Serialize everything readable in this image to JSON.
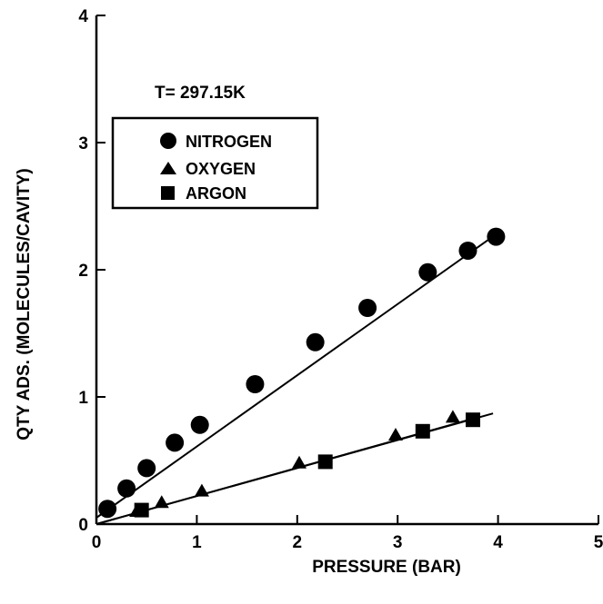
{
  "chart_data": {
    "type": "scatter",
    "title": "T= 297.15K",
    "xlabel": "PRESSURE (BAR)",
    "ylabel": "QTY ADS. (MOLECULES/CAVITY)",
    "xlim": [
      0,
      5
    ],
    "ylim": [
      0,
      4
    ],
    "xticks": [
      "0",
      "1",
      "2",
      "3",
      "4",
      "5"
    ],
    "yticks": [
      "0",
      "1",
      "2",
      "3",
      "4"
    ],
    "grid": false,
    "legend_position": "top-left",
    "series": [
      {
        "name": "NITROGEN",
        "marker": "circle",
        "x": [
          0.11,
          0.3,
          0.5,
          0.78,
          1.03,
          1.58,
          2.18,
          2.7,
          3.3,
          3.7,
          3.98
        ],
        "y": [
          0.12,
          0.28,
          0.44,
          0.64,
          0.78,
          1.1,
          1.43,
          1.7,
          1.98,
          2.15,
          2.26
        ],
        "fit": {
          "x": [
            0.0,
            4.0
          ],
          "y": [
            0.05,
            2.29
          ]
        }
      },
      {
        "name": "OXYGEN",
        "marker": "triangle",
        "x": [
          0.4,
          0.65,
          1.05,
          2.02,
          2.98,
          3.55
        ],
        "y": [
          0.1,
          0.17,
          0.26,
          0.48,
          0.7,
          0.84
        ],
        "fit": {
          "x": [
            0.0,
            3.95
          ],
          "y": [
            0.0,
            0.87
          ]
        }
      },
      {
        "name": "ARGON",
        "marker": "square",
        "x": [
          0.45,
          2.28,
          3.25,
          3.75
        ],
        "y": [
          0.11,
          0.49,
          0.73,
          0.82
        ],
        "fit": {
          "x": [
            0.0,
            3.8
          ],
          "y": [
            0.0,
            0.84
          ]
        }
      }
    ]
  }
}
